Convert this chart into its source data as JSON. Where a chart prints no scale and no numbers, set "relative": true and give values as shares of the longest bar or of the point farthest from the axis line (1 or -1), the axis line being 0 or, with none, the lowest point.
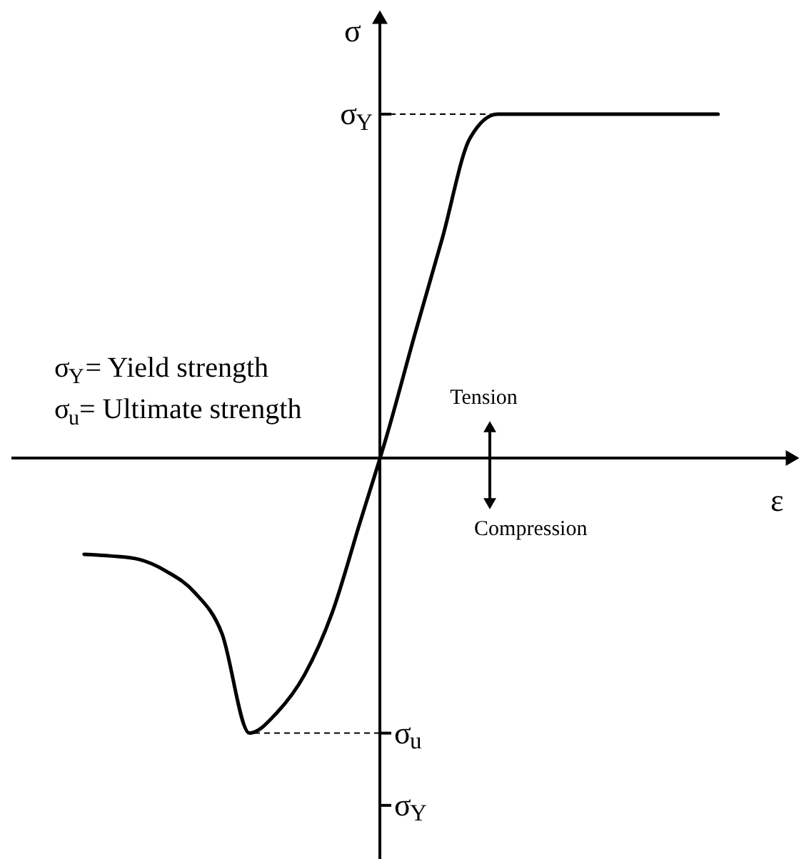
{
  "chart_data": {
    "type": "line",
    "relative": true,
    "xlabel": "ε",
    "ylabel": "σ",
    "categories": [
      null,
      null,
      null,
      null,
      null,
      null,
      null,
      null,
      null,
      null,
      null,
      null,
      null,
      null,
      null,
      null,
      null,
      null,
      null,
      null,
      null,
      null,
      null,
      null
    ],
    "series": [
      {
        "color": "#000000",
        "values": [
          -0.28,
          -0.285,
          -0.295,
          -0.33,
          -0.39,
          -0.51,
          -0.8,
          -0.74,
          -0.63,
          -0.45,
          -0.19,
          0.07,
          0.36,
          0.64,
          0.93,
          1.0,
          1.0,
          1.0,
          1.0,
          1.0,
          1.0,
          1.0,
          1.0,
          1.0
        ]
      }
    ],
    "marker": "none",
    "line_style": "solid",
    "annotations": [
      "σ$_{Y}$",
      "σ$_{u}$",
      "σ$_{Y}$",
      "σ$_{Y}$= Yield strength",
      "σ$_{u}$= Ultimate strength",
      "Tension",
      "Compression"
    ]
  }
}
